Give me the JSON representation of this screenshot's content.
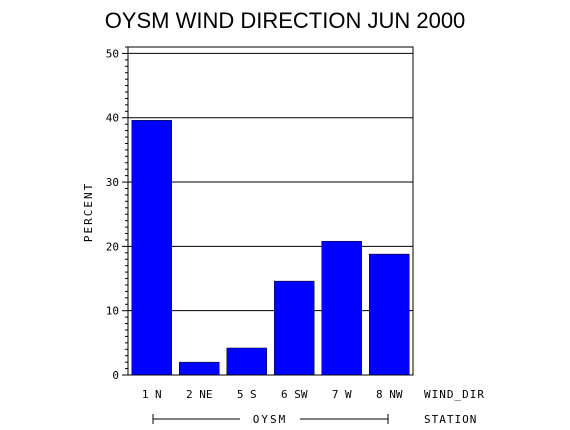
{
  "chart_data": {
    "type": "bar",
    "title": "OYSM WIND DIRECTION JUN 2000",
    "ylabel": "PERCENT",
    "xlabel": "WIND_DIR",
    "group_axis_label": "STATION",
    "group_label": "OYSM",
    "ylim": [
      0,
      51
    ],
    "yticks": [
      0,
      10,
      20,
      30,
      40,
      50
    ],
    "grid": true,
    "categories": [
      "1 N",
      "2 NE",
      "5 S",
      "6 SW",
      "7 W",
      "8 NW"
    ],
    "values": [
      39.6,
      2.0,
      4.2,
      14.6,
      20.8,
      18.8
    ],
    "bar_color": "#0000ff"
  }
}
